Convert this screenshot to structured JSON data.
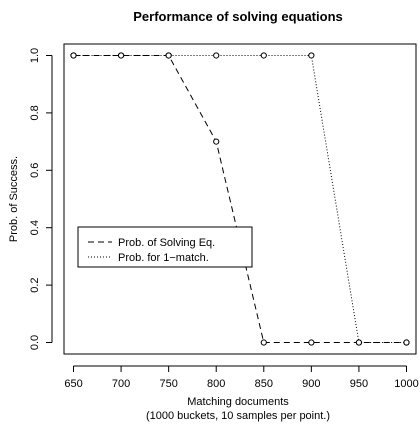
{
  "chart_data": {
    "type": "line",
    "title": "Performance of solving equations",
    "xlabel": "Matching documents",
    "xlabel_sub": "(1000 buckets, 10 samples per point.)",
    "ylabel": "Prob. of Success.",
    "x_ticks": [
      "650",
      "700",
      "750",
      "800",
      "850",
      "900",
      "950",
      "1000"
    ],
    "y_ticks": [
      "0.0",
      "0.2",
      "0.4",
      "0.6",
      "0.8",
      "1.0"
    ],
    "xlim": [
      640,
      1010
    ],
    "ylim": [
      -0.04,
      1.04
    ],
    "grid": false,
    "legend_position": "left",
    "series": [
      {
        "name": "Prob. of Solving Eq.",
        "line_style": "dashed",
        "x": [
          650,
          700,
          750,
          800,
          850,
          900,
          950,
          1000
        ],
        "y": [
          1.0,
          1.0,
          1.0,
          0.7,
          0.0,
          0.0,
          0.0,
          0.0
        ]
      },
      {
        "name": "Prob. for 1−match.",
        "line_style": "dotted",
        "x": [
          650,
          700,
          750,
          800,
          850,
          900,
          950,
          1000
        ],
        "y": [
          1.0,
          1.0,
          1.0,
          1.0,
          1.0,
          1.0,
          0.0,
          0.0
        ]
      }
    ]
  }
}
